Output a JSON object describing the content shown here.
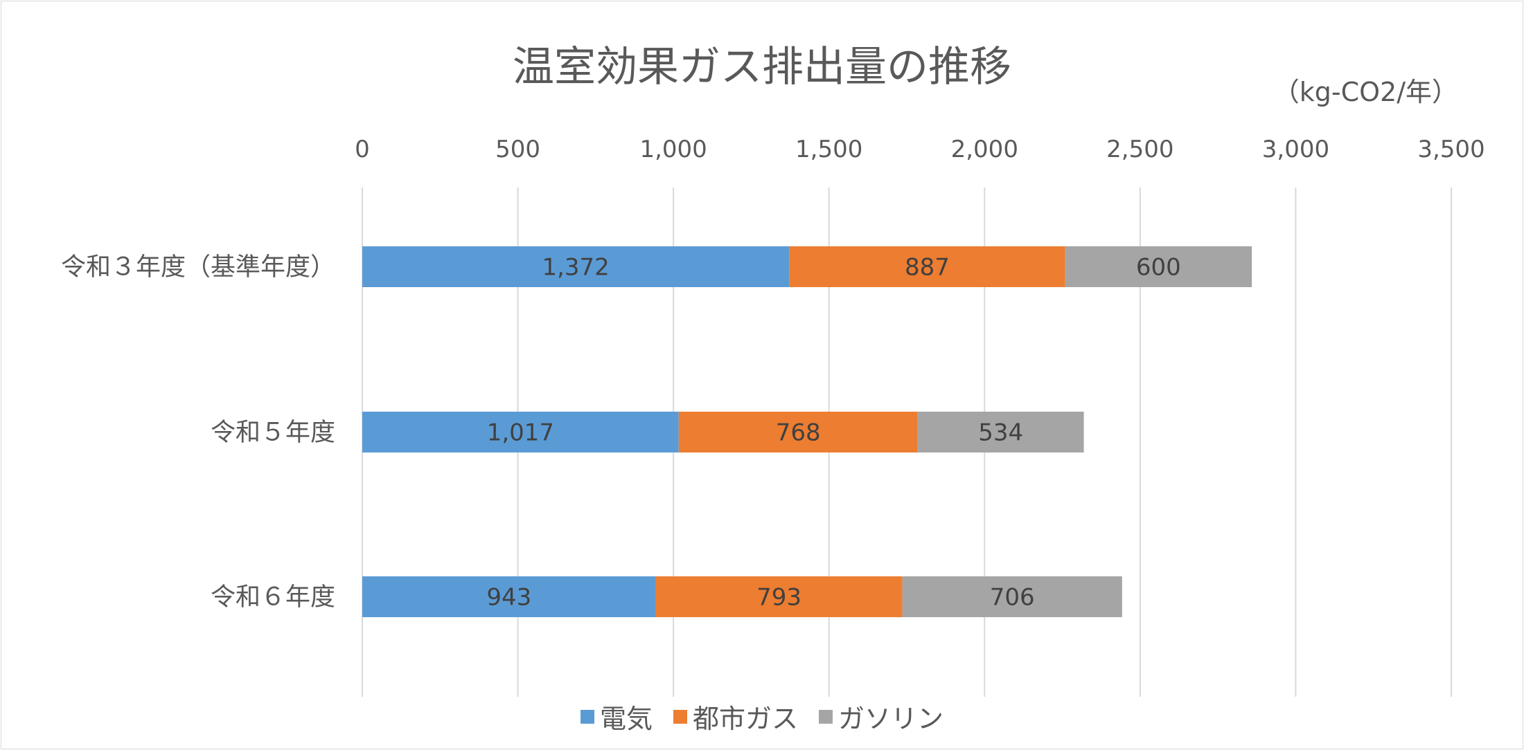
{
  "chart_data": {
    "type": "bar",
    "orientation": "horizontal",
    "stacked": true,
    "title": "温室効果ガス排出量の推移",
    "unit_label": "（kg-CO2/年）",
    "categories": [
      "令和３年度（基準年度）",
      "令和５年度",
      "令和６年度"
    ],
    "series": [
      {
        "name": "電気",
        "color": "#5b9bd5",
        "values": [
          1372,
          1017,
          943
        ],
        "labels": [
          "1,372",
          "1,017",
          "943"
        ]
      },
      {
        "name": "都市ガス",
        "color": "#ed7d31",
        "values": [
          887,
          768,
          793
        ],
        "labels": [
          "887",
          "768",
          "793"
        ]
      },
      {
        "name": "ガソリン",
        "color": "#a5a5a5",
        "values": [
          600,
          534,
          706
        ],
        "labels": [
          "600",
          "534",
          "706"
        ]
      }
    ],
    "xlim": [
      0,
      3500
    ],
    "ticks": [
      0,
      500,
      1000,
      1500,
      2000,
      2500,
      3000,
      3500
    ],
    "tick_labels": [
      "0",
      "500",
      "1,000",
      "1,500",
      "2,000",
      "2,500",
      "3,000",
      "3,500"
    ],
    "axis_position": "top",
    "grid": true,
    "legend": "bottom"
  }
}
